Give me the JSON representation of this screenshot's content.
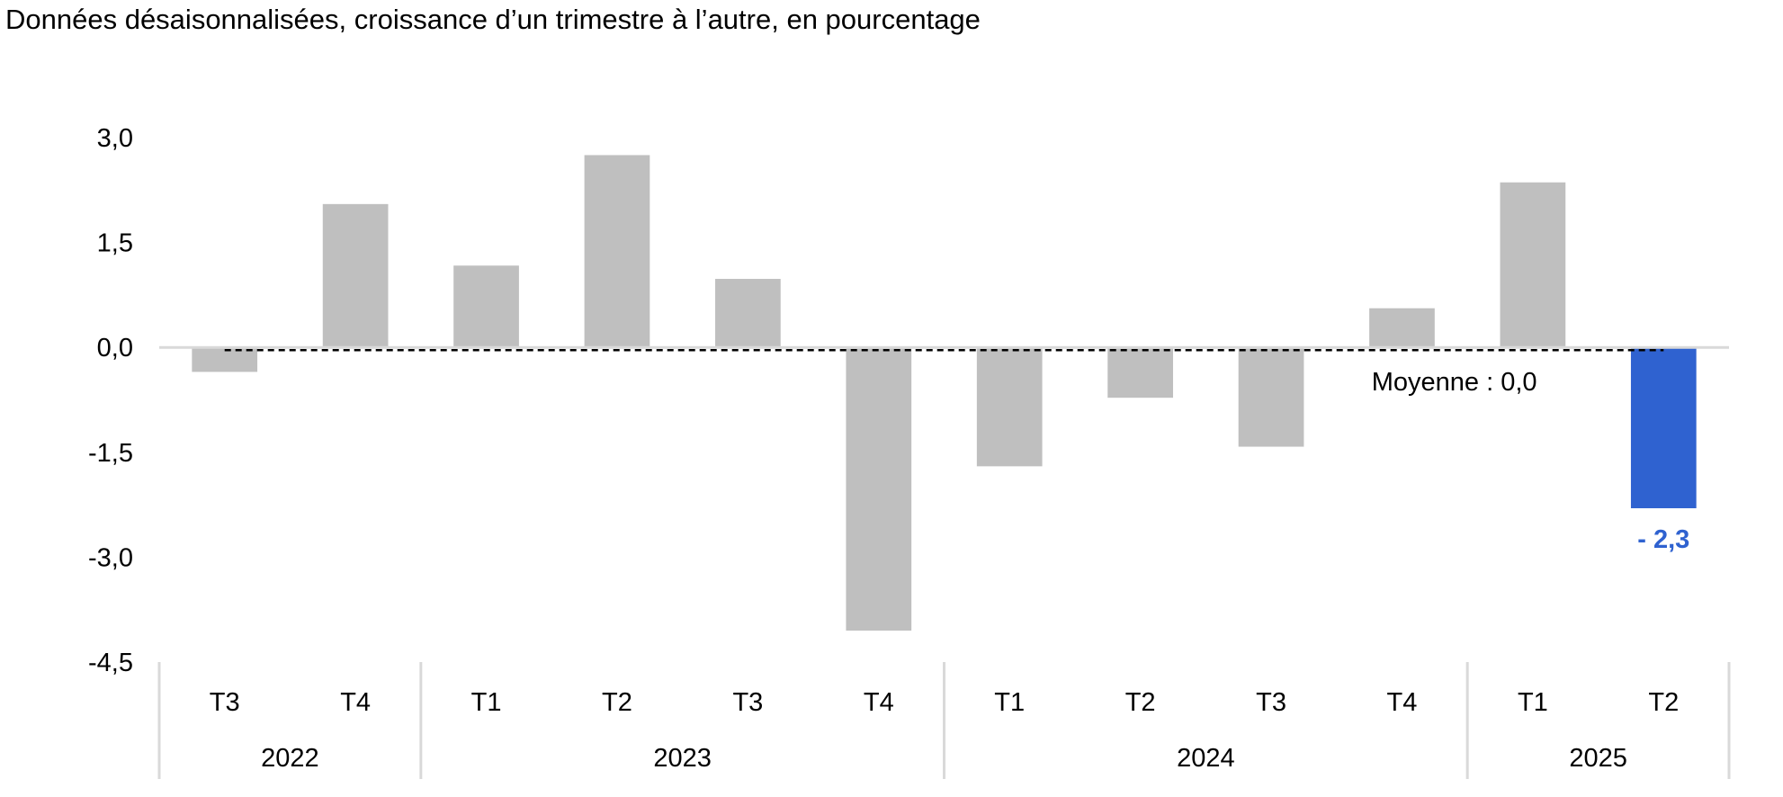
{
  "subtitle": "Données désaisonnalisées, croissance d’un trimestre à l’autre, en pourcentage",
  "chart_data": {
    "type": "bar",
    "title": "",
    "xlabel": "",
    "ylabel": "",
    "ylim": [
      -4.5,
      3.0
    ],
    "yticks": [
      3.0,
      1.5,
      0.0,
      -1.5,
      -3.0,
      -4.5
    ],
    "ytick_labels": [
      "3,0",
      "1,5",
      "0,0",
      "-1,5",
      "-3,0",
      "-4,5"
    ],
    "grid": false,
    "categories": [
      "T3",
      "T4",
      "T1",
      "T2",
      "T3",
      "T4",
      "T1",
      "T2",
      "T3",
      "T4",
      "T1",
      "T2"
    ],
    "values": [
      -0.35,
      2.05,
      1.17,
      2.75,
      0.98,
      -4.05,
      -1.7,
      -0.72,
      -1.42,
      0.56,
      2.36,
      -2.3
    ],
    "groups": [
      {
        "label": "2022",
        "count": 2
      },
      {
        "label": "2023",
        "count": 4
      },
      {
        "label": "2024",
        "count": 4
      },
      {
        "label": "2025",
        "count": 2
      }
    ],
    "reference_line": {
      "value": 0.0,
      "label": "Moyenne : 0,0",
      "style": "dashed"
    },
    "highlight": {
      "index": 11,
      "label": "- 2,3"
    },
    "colors": {
      "bar": "#bfbfbf",
      "highlight": "#2f62d0",
      "axis": "#d9d9d9",
      "reference": "#000000"
    }
  }
}
